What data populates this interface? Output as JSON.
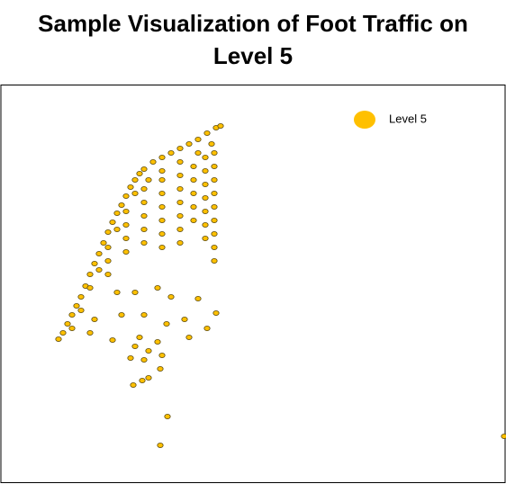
{
  "chart_data": {
    "type": "scatter",
    "title": "Sample Visualization of Foot Traffic on Level 5",
    "xlim": [
      0,
      560
    ],
    "ylim": [
      0,
      443
    ],
    "grid": false,
    "legend": "upper right",
    "series": [
      {
        "name": "Level 5",
        "color": "#ffc000",
        "x": [
          64,
          69,
          74,
          79,
          84,
          89,
          94,
          99,
          104,
          109,
          114,
          119,
          124,
          129,
          134,
          139,
          144,
          149,
          154,
          159,
          169,
          179,
          189,
          199,
          209,
          219,
          229,
          239,
          244,
          79,
          89,
          99,
          109,
          119,
          129,
          139,
          149,
          164,
          179,
          199,
          219,
          234,
          159,
          159,
          159,
          159,
          159,
          179,
          179,
          179,
          179,
          179,
          179,
          199,
          199,
          199,
          199,
          199,
          199,
          214,
          214,
          214,
          214,
          214,
          227,
          227,
          227,
          227,
          227,
          227,
          227,
          237,
          237,
          237,
          237,
          237,
          237,
          237,
          237,
          237,
          139,
          139,
          139,
          119,
          119,
          129,
          149,
          174,
          189,
          219,
          239,
          204,
          184,
          159,
          134,
          104,
          99,
          124,
          154,
          174,
          149,
          164,
          144,
          159,
          179,
          209,
          229,
          164,
          177,
          147,
          157,
          185,
          177,
          559
        ],
        "values": [
          160,
          167,
          177,
          187,
          197,
          207,
          219,
          232,
          244,
          255,
          267,
          279,
          290,
          300,
          309,
          319,
          329,
          337,
          344,
          349,
          357,
          362,
          367,
          372,
          377,
          382,
          389,
          395,
          397,
          172,
          192,
          217,
          237,
          262,
          282,
          302,
          322,
          337,
          347,
          357,
          367,
          377,
          327,
          312,
          297,
          282,
          267,
          337,
          322,
          307,
          292,
          277,
          262,
          342,
          327,
          312,
          297,
          282,
          267,
          352,
          337,
          322,
          307,
          292,
          362,
          347,
          332,
          317,
          302,
          287,
          272,
          367,
          352,
          337,
          322,
          307,
          292,
          277,
          262,
          247,
          287,
          272,
          257,
          247,
          232,
          212,
          212,
          217,
          207,
          205,
          189,
          182,
          177,
          187,
          187,
          182,
          167,
          159,
          162,
          157,
          152,
          147,
          139,
          137,
          142,
          162,
          172,
          117,
          127,
          109,
          114,
          74,
          42,
          52
        ]
      }
    ]
  }
}
